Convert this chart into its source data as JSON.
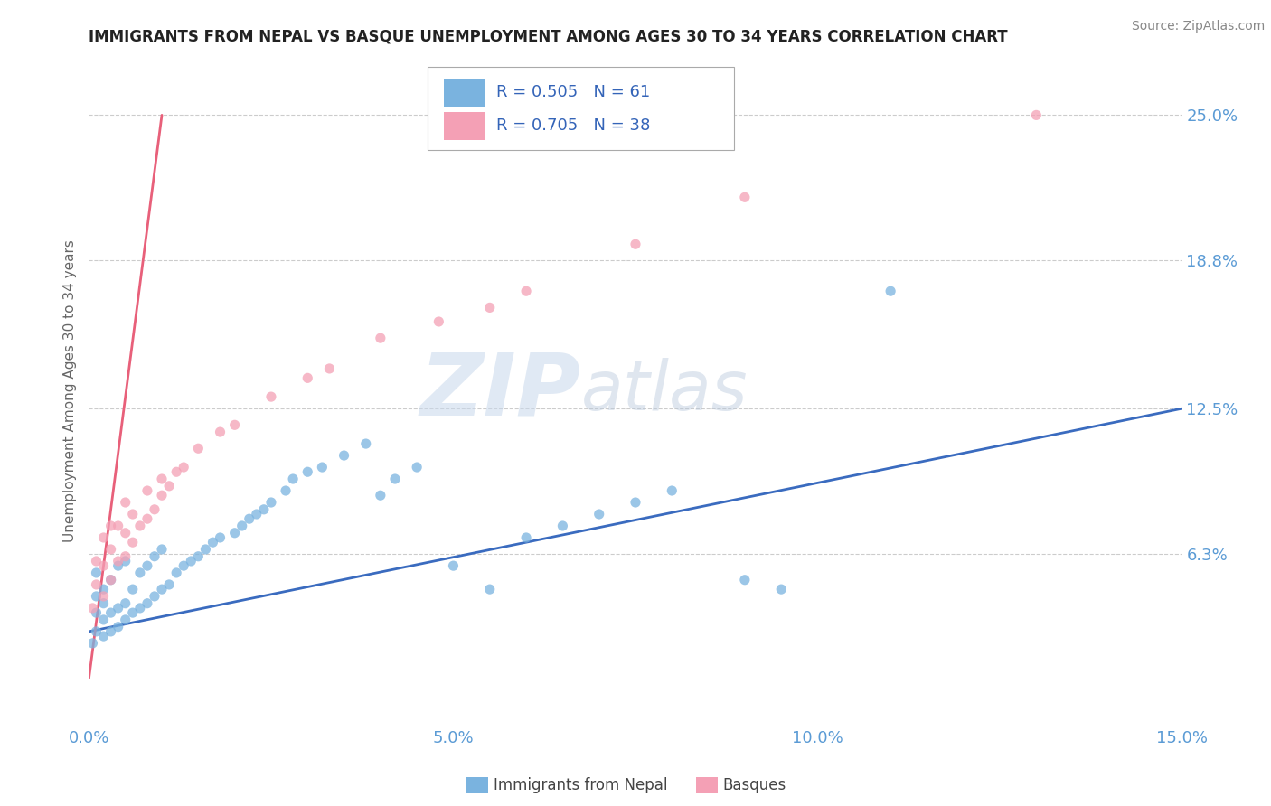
{
  "title": "IMMIGRANTS FROM NEPAL VS BASQUE UNEMPLOYMENT AMONG AGES 30 TO 34 YEARS CORRELATION CHART",
  "source": "Source: ZipAtlas.com",
  "ylabel": "Unemployment Among Ages 30 to 34 years",
  "xlim": [
    0.0,
    0.15
  ],
  "ylim": [
    -0.01,
    0.275
  ],
  "xticks": [
    0.0,
    0.05,
    0.1,
    0.15
  ],
  "xticklabels": [
    "0.0%",
    "5.0%",
    "10.0%",
    "15.0%"
  ],
  "yticks_right": [
    0.063,
    0.125,
    0.188,
    0.25
  ],
  "yticklabels_right": [
    "6.3%",
    "12.5%",
    "18.8%",
    "25.0%"
  ],
  "series1_color": "#7ab3df",
  "series2_color": "#f4a0b5",
  "series1_label": "Immigrants from Nepal",
  "series2_label": "Basques",
  "line1_color": "#3a6bbf",
  "line2_color": "#e8607a",
  "watermark_zip": "ZIP",
  "watermark_atlas": "atlas",
  "background_color": "#ffffff",
  "grid_color": "#cccccc",
  "tick_color": "#5b9bd5",
  "nepal_x": [
    0.0005,
    0.001,
    0.001,
    0.001,
    0.001,
    0.002,
    0.002,
    0.002,
    0.002,
    0.003,
    0.003,
    0.003,
    0.004,
    0.004,
    0.004,
    0.005,
    0.005,
    0.005,
    0.006,
    0.006,
    0.007,
    0.007,
    0.008,
    0.008,
    0.009,
    0.009,
    0.01,
    0.01,
    0.011,
    0.012,
    0.013,
    0.014,
    0.015,
    0.016,
    0.017,
    0.018,
    0.02,
    0.021,
    0.022,
    0.023,
    0.024,
    0.025,
    0.027,
    0.028,
    0.03,
    0.032,
    0.035,
    0.038,
    0.04,
    0.042,
    0.045,
    0.05,
    0.055,
    0.06,
    0.065,
    0.07,
    0.075,
    0.08,
    0.09,
    0.095,
    0.11
  ],
  "nepal_y": [
    0.025,
    0.03,
    0.038,
    0.045,
    0.055,
    0.028,
    0.035,
    0.042,
    0.048,
    0.03,
    0.038,
    0.052,
    0.032,
    0.04,
    0.058,
    0.035,
    0.042,
    0.06,
    0.038,
    0.048,
    0.04,
    0.055,
    0.042,
    0.058,
    0.045,
    0.062,
    0.048,
    0.065,
    0.05,
    0.055,
    0.058,
    0.06,
    0.062,
    0.065,
    0.068,
    0.07,
    0.072,
    0.075,
    0.078,
    0.08,
    0.082,
    0.085,
    0.09,
    0.095,
    0.098,
    0.1,
    0.105,
    0.11,
    0.088,
    0.095,
    0.1,
    0.058,
    0.048,
    0.07,
    0.075,
    0.08,
    0.085,
    0.09,
    0.052,
    0.048,
    0.175
  ],
  "basque_x": [
    0.0005,
    0.001,
    0.001,
    0.002,
    0.002,
    0.002,
    0.003,
    0.003,
    0.003,
    0.004,
    0.004,
    0.005,
    0.005,
    0.005,
    0.006,
    0.006,
    0.007,
    0.008,
    0.008,
    0.009,
    0.01,
    0.01,
    0.011,
    0.012,
    0.013,
    0.015,
    0.018,
    0.02,
    0.025,
    0.03,
    0.033,
    0.04,
    0.048,
    0.055,
    0.06,
    0.075,
    0.09,
    0.13
  ],
  "basque_y": [
    0.04,
    0.05,
    0.06,
    0.045,
    0.058,
    0.07,
    0.052,
    0.065,
    0.075,
    0.06,
    0.075,
    0.062,
    0.072,
    0.085,
    0.068,
    0.08,
    0.075,
    0.078,
    0.09,
    0.082,
    0.088,
    0.095,
    0.092,
    0.098,
    0.1,
    0.108,
    0.115,
    0.118,
    0.13,
    0.138,
    0.142,
    0.155,
    0.162,
    0.168,
    0.175,
    0.195,
    0.215,
    0.25
  ]
}
